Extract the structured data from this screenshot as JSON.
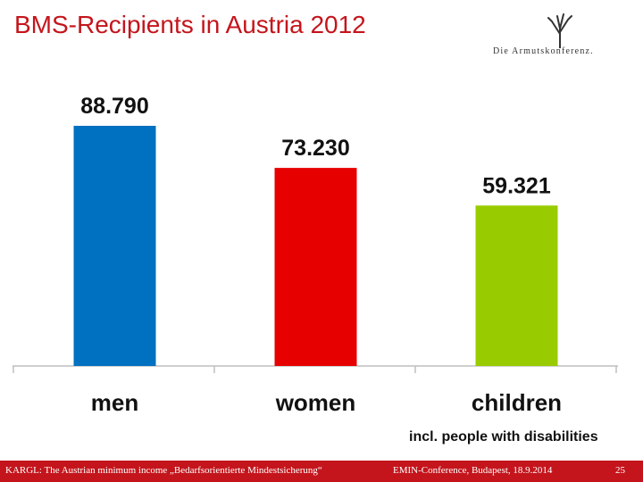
{
  "slide": {
    "title": "BMS-Recipients in Austria 2012",
    "logo_text": "Die Armutskonferenz.",
    "note": "incl. people with disabilities"
  },
  "footer": {
    "left": "KARGL: The Austrian minimum income „Bedarfsorientierte Mindestsicherung“",
    "middle": "EMIN-Conference, Budapest, 18.9.2014",
    "page": "25"
  },
  "chart_data": {
    "type": "bar",
    "title": "BMS-Recipients in Austria 2012",
    "categories": [
      "men",
      "women",
      "children"
    ],
    "values": [
      88790,
      73230,
      59321
    ],
    "value_labels": [
      "88.790",
      "73.230",
      "59.321"
    ],
    "bar_colors": [
      "#0070c0",
      "#e60000",
      "#99cc00"
    ],
    "ylim": [
      0,
      100000
    ],
    "grid": false,
    "legend": "none"
  }
}
